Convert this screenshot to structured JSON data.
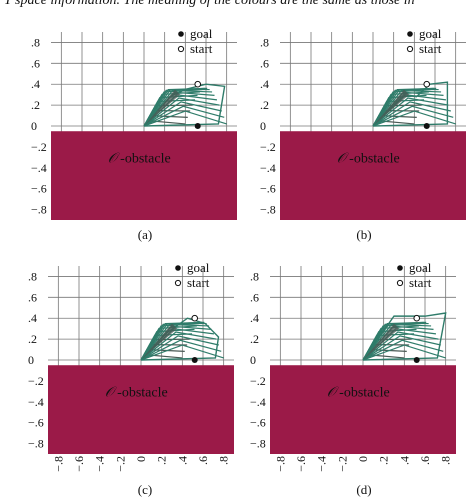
{
  "caption_line": "T space information. The meaning of the colours are the same as those in",
  "legend": {
    "goal": "goal",
    "start": "start"
  },
  "obstacle_label": "-obstacle",
  "obstacle_symbol": "𝒪",
  "y_ticks": [
    ".8",
    ".6",
    ".4",
    ".2",
    "0",
    "−.2",
    "−.4",
    "−.6",
    "−.8"
  ],
  "x_ticks": [
    "−.8",
    "−.6",
    "−.4",
    "−.2",
    "0",
    ".2",
    ".4",
    ".6",
    ".8"
  ],
  "colors": {
    "obstacle": "#9b1a48",
    "arm": "#2f7c6a",
    "arm_dark": "#4a5a55",
    "grid": "#777777"
  },
  "panels": [
    {
      "id": "a",
      "label": "(a)",
      "show_x_ticks": false,
      "goal": [
        0.52,
        0.0
      ],
      "start": [
        0.52,
        0.4
      ]
    },
    {
      "id": "b",
      "label": "(b)",
      "show_x_ticks": false,
      "goal": [
        0.52,
        0.0
      ],
      "start": [
        0.52,
        0.4
      ]
    },
    {
      "id": "c",
      "label": "(c)",
      "show_x_ticks": true,
      "goal": [
        0.52,
        0.0
      ],
      "start": [
        0.52,
        0.4
      ]
    },
    {
      "id": "d",
      "label": "(d)",
      "show_x_ticks": true,
      "goal": [
        0.52,
        0.0
      ],
      "start": [
        0.52,
        0.4
      ]
    }
  ]
}
